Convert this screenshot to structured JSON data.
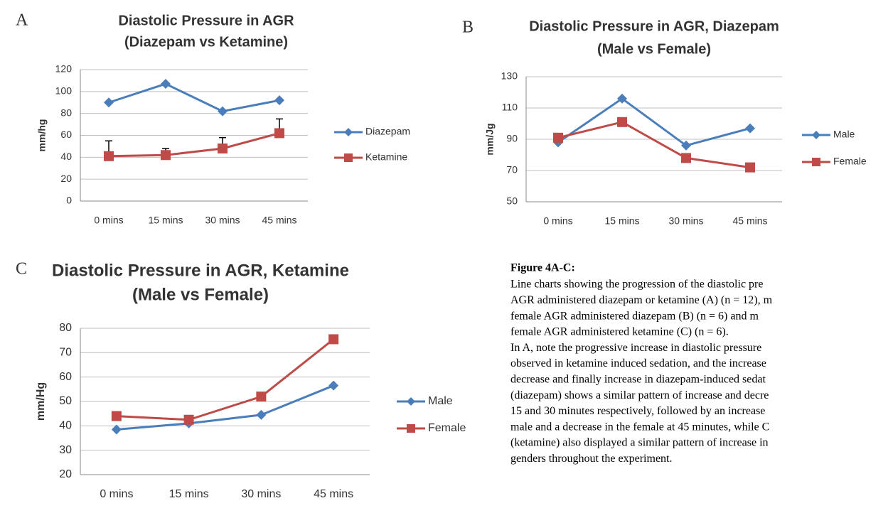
{
  "panels": [
    "A",
    "B",
    "C"
  ],
  "chart_data": [
    {
      "type": "line",
      "title": [
        "Diastolic Pressure in AGR",
        "(Diazepam vs Ketamine)"
      ],
      "ylabel": "mm/hg",
      "categories": [
        "0 mins",
        "15 mins",
        "30 mins",
        "45 mins"
      ],
      "series": [
        {
          "name": "Diazepam",
          "color": "#4a7ebb",
          "marker": "diamond",
          "values": [
            90,
            107,
            82,
            92
          ]
        },
        {
          "name": "Ketamine",
          "color": "#be4b48",
          "marker": "square",
          "values": [
            41,
            42,
            48,
            62
          ],
          "errors": [
            14,
            6,
            10,
            13
          ]
        }
      ],
      "ylim": [
        0,
        120
      ],
      "yticks": [
        0,
        20,
        40,
        60,
        80,
        100,
        120
      ],
      "grid": true,
      "legend": "right"
    },
    {
      "type": "line",
      "title": [
        "Diastolic Pressure in AGR, Diazepam",
        "(Male vs Female)"
      ],
      "ylabel": "mm/Jg",
      "categories": [
        "0 mins",
        "15 mins",
        "30 mins",
        "45 mins"
      ],
      "series": [
        {
          "name": "Male",
          "color": "#4a7ebb",
          "marker": "diamond",
          "values": [
            88,
            116,
            86,
            97
          ]
        },
        {
          "name": "Female",
          "color": "#be4b48",
          "marker": "square",
          "values": [
            91,
            101,
            78,
            72
          ]
        }
      ],
      "ylim": [
        50,
        130
      ],
      "yticks": [
        50,
        70,
        90,
        110,
        130
      ],
      "grid": true,
      "legend": "right"
    },
    {
      "type": "line",
      "title": [
        "Diastolic Pressure in AGR, Ketamine",
        "(Male vs Female)"
      ],
      "ylabel": "mm/Hg",
      "categories": [
        "0 mins",
        "15 mins",
        "30 mins",
        "45 mins"
      ],
      "series": [
        {
          "name": "Male",
          "color": "#4a7ebb",
          "marker": "diamond",
          "values": [
            38.5,
            41,
            44.5,
            56.5
          ]
        },
        {
          "name": "Female",
          "color": "#be4b48",
          "marker": "square",
          "values": [
            44,
            42.5,
            52,
            75.5
          ]
        }
      ],
      "ylim": [
        20,
        80
      ],
      "yticks": [
        20,
        30,
        40,
        50,
        60,
        70,
        80
      ],
      "grid": true,
      "legend": "right"
    }
  ],
  "caption": {
    "heading": "Figure 4A-C:",
    "lines": [
      " Line charts showing the progression of the diastolic pre",
      "AGR administered diazepam or ketamine (A) (n = 12), m",
      "female AGR administered diazepam (B) (n = 6) and m",
      "female AGR administered ketamine (C) (n = 6).",
      "In A, note the progressive increase in diastolic pressure",
      "observed in ketamine induced sedation, and the increase",
      "decrease and finally increase in diazepam-induced sedat",
      "(diazepam) shows a similar pattern of increase and decre",
      "15 and 30 minutes respectively, followed by an increase",
      "male and a decrease in the female at 45 minutes, while C",
      "(ketamine) also displayed a similar pattern of increase in",
      "genders throughout the experiment."
    ]
  }
}
